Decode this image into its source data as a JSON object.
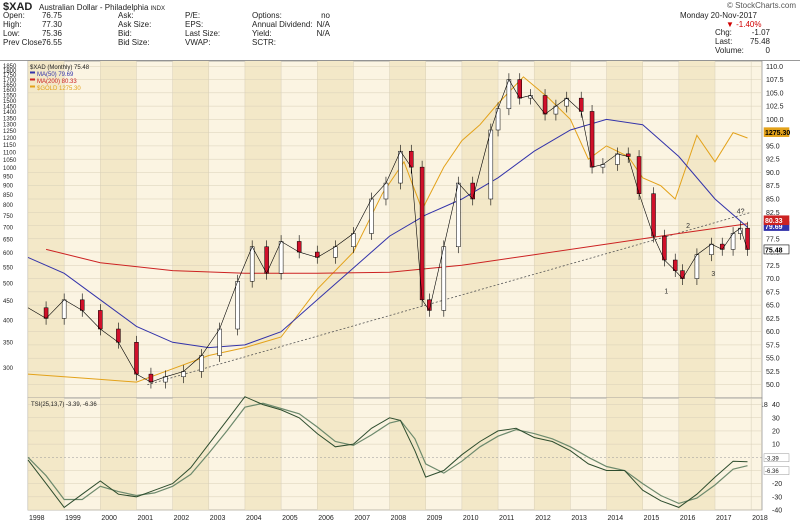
{
  "header": {
    "symbol": "$XAD",
    "name": "Australian Dollar - Philadelphia",
    "exchange": "INDX",
    "watermark": "© StockCharts.com",
    "date": "Monday  20-Nov-2017",
    "change_pct": "▼ -1.40%",
    "quote_left": [
      {
        "label": "Open:",
        "value": "76.75"
      },
      {
        "label": "High:",
        "value": "77.30"
      },
      {
        "label": "Low:",
        "value": "75.36"
      },
      {
        "label": "Prev Close:",
        "value": "76.55"
      }
    ],
    "quote_mid1": [
      {
        "label": "Ask:",
        "value": ""
      },
      {
        "label": "Ask Size:",
        "value": ""
      },
      {
        "label": "Bid:",
        "value": ""
      },
      {
        "label": "Bid Size:",
        "value": ""
      }
    ],
    "quote_mid2": [
      {
        "label": "P/E:",
        "value": ""
      },
      {
        "label": "EPS:",
        "value": ""
      },
      {
        "label": "Last Size:",
        "value": ""
      },
      {
        "label": "VWAP:",
        "value": ""
      }
    ],
    "quote_mid3": [
      {
        "label": "Options:",
        "value": "no"
      },
      {
        "label": "Annual Dividend:",
        "value": "N/A"
      },
      {
        "label": "Yield:",
        "value": "N/A"
      },
      {
        "label": "SCTR:",
        "value": ""
      }
    ],
    "quote_right": [
      {
        "label": "Chg:",
        "value": "-1.07"
      },
      {
        "label": "Last:",
        "value": "75.48"
      },
      {
        "label": "Volume:",
        "value": "0"
      }
    ]
  },
  "chart_data": [
    {
      "type": "line",
      "title": "$XAD (Monthly) 75.48",
      "legend": [
        {
          "name": "$XAD (Monthly) 75.48",
          "color": "#000000"
        },
        {
          "name": "MA(50) 79.69",
          "color": "#3333aa"
        },
        {
          "name": "MA(200) 80.33",
          "color": "#cc2222"
        },
        {
          "name": "$GOLD 1275.30",
          "color": "#e3a21a"
        }
      ],
      "x_ticks": [
        "1998",
        "1999",
        "2000",
        "2001",
        "2002",
        "2003",
        "2004",
        "2005",
        "2006",
        "2007",
        "2008",
        "2009",
        "2010",
        "2011",
        "2012",
        "2013",
        "2014",
        "2015",
        "2016",
        "2017",
        "2018"
      ],
      "y_right_ticks": [
        "50.0",
        "52.5",
        "55.0",
        "57.5",
        "60.0",
        "62.5",
        "65.0",
        "67.5",
        "70.0",
        "72.5",
        "75.0",
        "77.5",
        "80.0",
        "82.5",
        "85.0",
        "87.5",
        "90.0",
        "92.5",
        "95.0",
        "97.5",
        "100.0",
        "102.5",
        "105.0",
        "107.5",
        "110.0"
      ],
      "y_left_ticks": [
        "300",
        "350",
        "400",
        "450",
        "500",
        "550",
        "600",
        "650",
        "700",
        "750",
        "800",
        "850",
        "900",
        "950",
        "1000",
        "1050",
        "1100",
        "1150",
        "1200",
        "1250",
        "1300",
        "1350",
        "1400",
        "1450",
        "1500",
        "1550",
        "1600",
        "1650",
        "1700",
        "1750",
        "1800",
        "1850"
      ],
      "ylim": [
        47.5,
        111
      ],
      "value_badges": {
        "gold": "1275.30",
        "ma50": "79.69",
        "ma200": "80.33",
        "price": "75.48"
      },
      "annotations": [
        "1",
        "2",
        "3",
        "4?"
      ],
      "series": [
        {
          "name": "$XAD",
          "x": [
            1998.0,
            1998.5,
            1999.0,
            1999.5,
            2000.0,
            2000.5,
            2001.0,
            2001.4,
            2001.8,
            2002.3,
            2002.8,
            2003.3,
            2003.8,
            2004.2,
            2004.6,
            2005.0,
            2005.5,
            2006.0,
            2006.5,
            2007.0,
            2007.5,
            2007.9,
            2008.3,
            2008.6,
            2008.9,
            2009.1,
            2009.5,
            2009.9,
            2010.3,
            2010.8,
            2011.0,
            2011.3,
            2011.6,
            2011.9,
            2012.3,
            2012.6,
            2012.9,
            2013.3,
            2013.6,
            2013.9,
            2014.3,
            2014.6,
            2014.9,
            2015.3,
            2015.6,
            2015.9,
            2016.1,
            2016.5,
            2016.9,
            2017.2,
            2017.5,
            2017.7,
            2017.9
          ],
          "values": [
            64.5,
            62.5,
            66.0,
            64.0,
            60.5,
            58.0,
            52.0,
            50.5,
            51.5,
            52.5,
            55.5,
            60.5,
            69.5,
            76.0,
            71.0,
            77.0,
            75.0,
            74.0,
            76.0,
            78.5,
            85.0,
            88.0,
            94.0,
            91.0,
            66.0,
            64.0,
            76.0,
            88.0,
            85.0,
            98.0,
            102.0,
            107.5,
            104.0,
            104.5,
            101.0,
            102.5,
            104.0,
            101.5,
            91.0,
            91.5,
            93.5,
            93.0,
            86.0,
            78.0,
            73.5,
            71.5,
            70.0,
            74.5,
            76.5,
            75.5,
            78.5,
            79.5,
            75.48
          ]
        },
        {
          "name": "MA(50)",
          "x": [
            1998,
            1999,
            2000,
            2001,
            2002,
            2003,
            2004,
            2005,
            2006,
            2007,
            2008,
            2009,
            2010,
            2011,
            2012,
            2013,
            2014,
            2015,
            2016,
            2017,
            2017.9
          ],
          "values": [
            74.0,
            71.0,
            66.0,
            61.0,
            58.0,
            57.0,
            57.5,
            60.0,
            66.0,
            72.0,
            78.0,
            82.0,
            85.0,
            89.0,
            94.0,
            98.0,
            100.0,
            99.0,
            93.0,
            85.0,
            79.69
          ]
        },
        {
          "name": "MA(200)",
          "x": [
            1998.5,
            2000,
            2002,
            2004,
            2006,
            2008,
            2010,
            2012,
            2014,
            2016,
            2017.9
          ],
          "values": [
            75.5,
            73.0,
            71.5,
            71.0,
            71.0,
            71.2,
            72.5,
            74.5,
            76.5,
            78.5,
            80.33
          ]
        },
        {
          "name": "$GOLD",
          "x": [
            1998,
            1999,
            2000,
            2001,
            2002,
            2003,
            2004,
            2005,
            2006,
            2007,
            2007.8,
            2008.4,
            2008.9,
            2009.5,
            2010,
            2010.5,
            2011,
            2011.7,
            2012.4,
            2013,
            2013.5,
            2014,
            2014.6,
            2015,
            2015.5,
            2015.9,
            2016.5,
            2017,
            2017.5,
            2017.9
          ],
          "values": [
            52.0,
            51.5,
            51.0,
            50.5,
            53.0,
            55.5,
            57.0,
            59.0,
            68.0,
            75.0,
            86.0,
            92.0,
            83.0,
            91.0,
            96.0,
            99.0,
            103.0,
            108.0,
            104.0,
            100.0,
            92.5,
            95.0,
            93.0,
            89.0,
            87.5,
            85.0,
            97.0,
            92.0,
            97.5,
            96.5
          ]
        },
        {
          "name": "Trendline",
          "x": [
            2001.3,
            2018.0
          ],
          "values": [
            50.0,
            82.5
          ]
        }
      ]
    },
    {
      "type": "line",
      "title": "TSI(25,13,7) -3.39, -6.36",
      "x_ticks": [
        "1998",
        "1999",
        "2000",
        "2001",
        "2002",
        "2003",
        "2004",
        "2005",
        "2006",
        "2007",
        "2008",
        "2009",
        "2010",
        "2011",
        "2012",
        "2013",
        "2014",
        "2015",
        "2016",
        "2017",
        "2018"
      ],
      "y_ticks": [
        "-40",
        "-30",
        "-20",
        "-10",
        "0",
        "10",
        "20",
        "30",
        "40"
      ],
      "ylim": [
        -40,
        45
      ],
      "value_badges": {
        "tsi": "-3.39",
        "signal": "-6.36"
      },
      "series": [
        {
          "name": "TSI",
          "x": [
            1998,
            1998.5,
            1999,
            1999.5,
            2000,
            2000.5,
            2001,
            2001.5,
            2002,
            2002.5,
            2003,
            2003.5,
            2004,
            2004.5,
            2005,
            2005.5,
            2006,
            2006.5,
            2007,
            2007.5,
            2008,
            2008.3,
            2008.7,
            2009,
            2009.5,
            2010,
            2010.5,
            2011,
            2011.5,
            2012,
            2012.5,
            2013,
            2013.5,
            2014,
            2014.5,
            2015,
            2015.5,
            2016,
            2016.5,
            2017,
            2017.5,
            2017.9
          ],
          "values": [
            -2,
            -20,
            -38,
            -28,
            -18,
            -28,
            -30,
            -25,
            -20,
            -8,
            10,
            28,
            46,
            40,
            36,
            30,
            18,
            8,
            10,
            22,
            30,
            28,
            5,
            -15,
            -10,
            2,
            12,
            20,
            22,
            15,
            12,
            5,
            -5,
            -10,
            -10,
            -25,
            -33,
            -38,
            -28,
            -15,
            -3,
            -3.39
          ]
        },
        {
          "name": "Signal",
          "x": [
            1998,
            1998.5,
            1999,
            1999.5,
            2000,
            2000.5,
            2001,
            2001.5,
            2002,
            2002.5,
            2003,
            2003.5,
            2004,
            2004.5,
            2005,
            2005.5,
            2006,
            2006.5,
            2007,
            2007.5,
            2008,
            2008.3,
            2008.7,
            2009,
            2009.5,
            2010,
            2010.5,
            2011,
            2011.5,
            2012,
            2012.5,
            2013,
            2013.5,
            2014,
            2014.5,
            2015,
            2015.5,
            2016,
            2016.5,
            2017,
            2017.5,
            2017.9
          ],
          "values": [
            0,
            -14,
            -32,
            -32,
            -22,
            -26,
            -29,
            -27,
            -22,
            -13,
            3,
            20,
            38,
            41,
            37,
            33,
            23,
            12,
            9,
            17,
            26,
            28,
            14,
            -5,
            -12,
            -3,
            8,
            16,
            21,
            18,
            14,
            8,
            0,
            -7,
            -10,
            -20,
            -29,
            -35,
            -31,
            -21,
            -9,
            -6.36
          ]
        }
      ]
    }
  ]
}
